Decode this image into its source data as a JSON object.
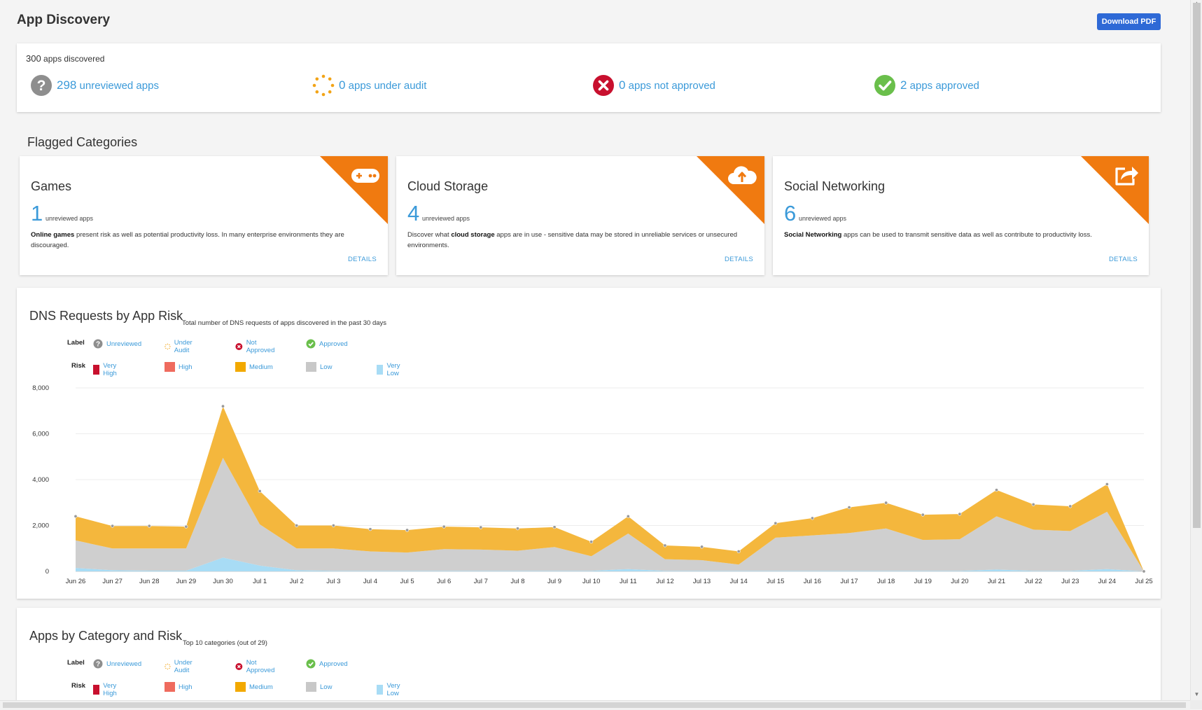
{
  "page": {
    "title": "App Discovery",
    "download_label": "Download PDF"
  },
  "summary": {
    "discovered_count": "300",
    "discovered_label": "apps discovered",
    "stats": [
      {
        "count": "298",
        "label": "unreviewed apps",
        "icon": "question-circle-icon"
      },
      {
        "count": "0",
        "label": "apps under audit",
        "icon": "dotted-circle-icon"
      },
      {
        "count": "0",
        "label": "apps not approved",
        "icon": "x-circle-icon"
      },
      {
        "count": "2",
        "label": "apps approved",
        "icon": "check-circle-icon"
      }
    ]
  },
  "flagged": {
    "title": "Flagged Categories",
    "cards": [
      {
        "name": "Games",
        "count": "1",
        "count_label": "unreviewed apps",
        "desc_bold": "Online games",
        "desc": " present risk as well as potential productivity loss. In many enterprise environments they are discouraged.",
        "desc_prefix": "",
        "details": "DETAILS",
        "icon": "gamepad-icon"
      },
      {
        "name": "Cloud Storage",
        "count": "4",
        "count_label": "unreviewed apps",
        "desc_prefix": "Discover what ",
        "desc_bold": "cloud storage",
        "desc": " apps are in use - sensitive data may be stored in unreliable services or unsecured environments.",
        "details": "DETAILS",
        "icon": "cloud-upload-icon"
      },
      {
        "name": "Social Networking",
        "count": "6",
        "count_label": "unreviewed apps",
        "desc_prefix": "",
        "desc_bold": "Social Networking",
        "desc": " apps can be used to transmit sensitive data as well as contribute to productivity loss.",
        "details": "DETAILS",
        "icon": "share-icon"
      }
    ]
  },
  "legend": {
    "label_head": "Label",
    "risk_head": "Risk",
    "labels": [
      "Unreviewed",
      "Under Audit",
      "Not Approved",
      "Approved"
    ],
    "risks": [
      {
        "name": "Very High",
        "color": "#c8102e"
      },
      {
        "name": "High",
        "color": "#ef6b5e"
      },
      {
        "name": "Medium",
        "color": "#f2a900"
      },
      {
        "name": "Low",
        "color": "#c8c8c8"
      },
      {
        "name": "Very Low",
        "color": "#a8dcf5"
      }
    ]
  },
  "dns_chart": {
    "title": "DNS Requests by App Risk",
    "subtitle": "Total number of DNS requests of apps discovered in the past 30 days"
  },
  "category_chart": {
    "title": "Apps by Category and Risk",
    "subtitle": "Top 10 categories (out of 29)"
  },
  "chart_data": {
    "type": "area",
    "x": [
      "Jun 26",
      "Jun 27",
      "Jun 28",
      "Jun 29",
      "Jun 30",
      "Jul 1",
      "Jul 2",
      "Jul 3",
      "Jul 4",
      "Jul 5",
      "Jul 6",
      "Jul 7",
      "Jul 8",
      "Jul 9",
      "Jul 10",
      "Jul 11",
      "Jul 12",
      "Jul 13",
      "Jul 14",
      "Jul 15",
      "Jul 16",
      "Jul 17",
      "Jul 18",
      "Jul 19",
      "Jul 20",
      "Jul 21",
      "Jul 22",
      "Jul 23",
      "Jul 24",
      "Jul 25"
    ],
    "ylim": [
      0,
      8000
    ],
    "yticks": [
      0,
      2000,
      4000,
      6000,
      8000
    ],
    "ytick_labels": [
      "0",
      "2,000",
      "4,000",
      "6,000",
      "8,000"
    ],
    "stacked": true,
    "series": [
      {
        "name": "Very Low",
        "color": "#a8dcf5",
        "values": [
          150,
          50,
          30,
          30,
          600,
          250,
          50,
          20,
          20,
          20,
          20,
          20,
          20,
          20,
          20,
          100,
          20,
          20,
          20,
          20,
          20,
          20,
          20,
          20,
          20,
          80,
          20,
          20,
          100,
          0
        ]
      },
      {
        "name": "Low",
        "color": "#cfcfcf",
        "values": [
          1200,
          950,
          970,
          970,
          4350,
          1800,
          950,
          980,
          850,
          800,
          950,
          930,
          880,
          1040,
          640,
          1550,
          510,
          470,
          280,
          1450,
          1550,
          1650,
          1850,
          1350,
          1380,
          2320,
          1800,
          1740,
          2500,
          0
        ]
      },
      {
        "name": "Medium",
        "color": "#f4b73d",
        "values": [
          1050,
          980,
          980,
          950,
          2250,
          1450,
          1000,
          1000,
          970,
          980,
          980,
          970,
          970,
          870,
          630,
          750,
          600,
          580,
          570,
          630,
          750,
          1120,
          1120,
          1100,
          1100,
          1150,
          1100,
          1080,
          1200,
          0
        ]
      }
    ]
  }
}
